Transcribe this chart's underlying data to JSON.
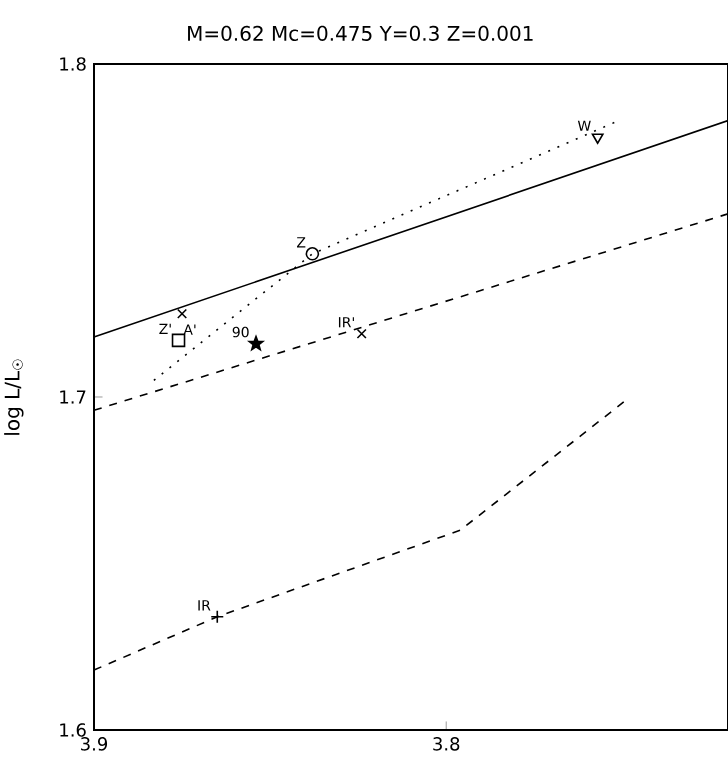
{
  "chart_data": {
    "type": "line",
    "title": "M=0.62 Mc=0.475 Y=0.3 Z=0.001",
    "ylabel": "log L/L$_{☉}$",
    "xlim": [
      3.9,
      3.72
    ],
    "ylim": [
      1.6,
      1.8
    ],
    "xticks": [
      3.9,
      3.8
    ],
    "yticks": [
      1.6,
      1.7,
      1.8
    ],
    "series": [
      {
        "line_style": "solid",
        "color": "#000000",
        "x": [
          3.9,
          3.72
        ],
        "values": [
          1.718,
          1.783
        ]
      },
      {
        "line_style": "dashed",
        "color": "#000000",
        "x": [
          3.9,
          3.72
        ],
        "values": [
          1.696,
          1.755
        ]
      },
      {
        "line_style": "dashed",
        "color": "#000000",
        "x": [
          3.9,
          3.865,
          3.796,
          3.749
        ],
        "values": [
          1.618,
          1.634,
          1.66,
          1.699
        ]
      },
      {
        "line_style": "dotted",
        "color": "#000000",
        "x": [
          3.883,
          3.838,
          3.751
        ],
        "values": [
          1.705,
          1.743,
          1.783
        ]
      },
      {
        "type": "scatter",
        "marker": "circle",
        "color": "#000000",
        "x": [
          3.838
        ],
        "values": [
          1.743
        ]
      },
      {
        "type": "scatter",
        "marker": "triangle",
        "color": "#000000",
        "x": [
          3.757
        ],
        "values": [
          1.778
        ]
      },
      {
        "type": "scatter",
        "marker": "cross",
        "color": "#000000",
        "x": [
          3.875,
          3.824
        ],
        "values": [
          1.725,
          1.719
        ]
      },
      {
        "type": "scatter",
        "marker": "square",
        "color": "#000000",
        "x": [
          3.876
        ],
        "values": [
          1.717
        ]
      },
      {
        "type": "scatter",
        "marker": "star",
        "color": "#000000",
        "x": [
          3.854
        ],
        "values": [
          1.716
        ]
      },
      {
        "type": "scatter",
        "marker": "plus",
        "color": "#000000",
        "x": [
          3.865
        ],
        "values": [
          1.634
        ]
      }
    ],
    "annotations": [
      {
        "text": "Z",
        "x": 3.838,
        "y": 1.743
      },
      {
        "text": "W",
        "x": 3.757,
        "y": 1.778
      },
      {
        "text": "A'",
        "x": 3.869,
        "y": 1.7168
      },
      {
        "text": "Z'",
        "x": 3.876,
        "y": 1.717
      },
      {
        "text": "IR'",
        "x": 3.824,
        "y": 1.719
      },
      {
        "text": "90",
        "x": 3.854,
        "y": 1.716
      },
      {
        "text": "IR",
        "x": 3.865,
        "y": 1.634
      }
    ]
  }
}
